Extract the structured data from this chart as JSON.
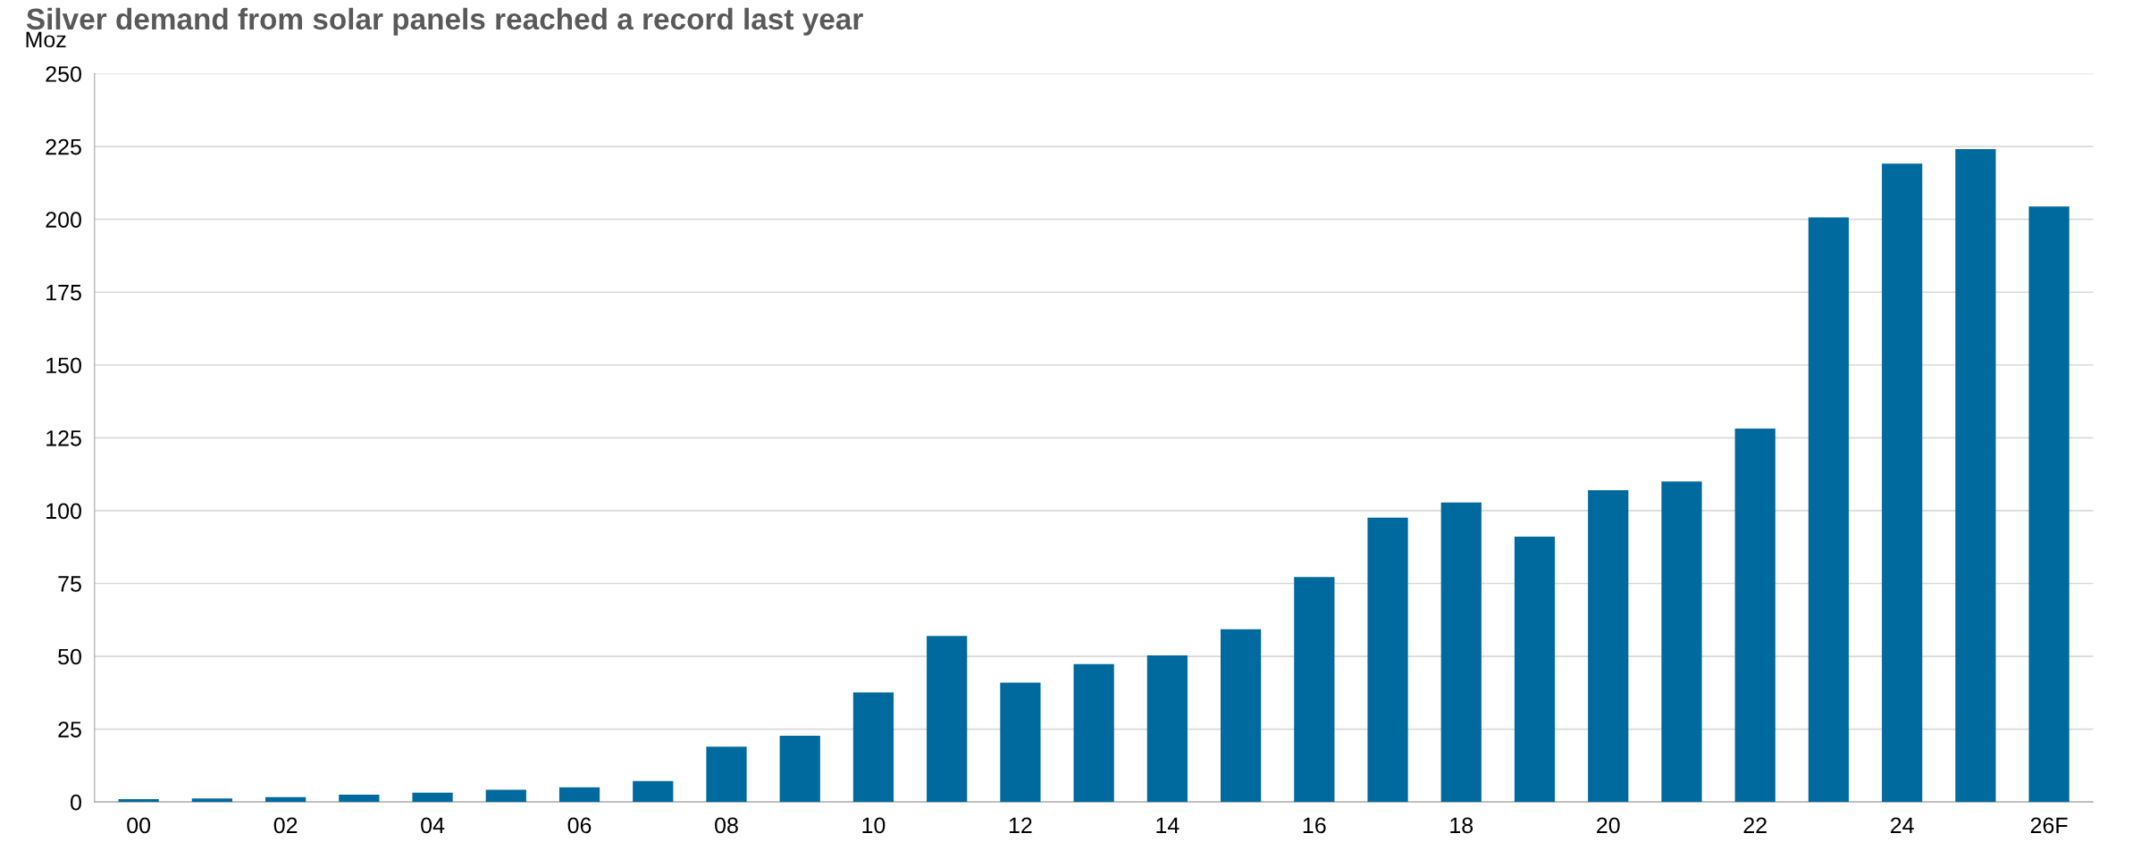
{
  "chart_data": {
    "type": "bar",
    "title": "Silver demand from solar panels reached a record last year",
    "ylabel": "Moz",
    "categories": [
      "00",
      null,
      "02",
      null,
      "04",
      null,
      "06",
      null,
      "08",
      null,
      "10",
      null,
      "12",
      null,
      "14",
      null,
      "16",
      null,
      "18",
      null,
      "20",
      null,
      "22",
      null,
      "24",
      null,
      "26F"
    ],
    "values": [
      1,
      1.2,
      1.7,
      2.5,
      3.2,
      4.2,
      5,
      7.2,
      19,
      22.7,
      37.6,
      57,
      41,
      47.3,
      50.3,
      59.3,
      77.2,
      97.6,
      102.8,
      91.1,
      107,
      110,
      128.2,
      200.7,
      219.1,
      224.1,
      204.4
    ],
    "color": "#006a9e",
    "ylim": [
      0,
      250
    ],
    "yticks": [
      0,
      25,
      50,
      75,
      100,
      125,
      150,
      175,
      200,
      225,
      250
    ],
    "grid": "y",
    "legend": false
  }
}
